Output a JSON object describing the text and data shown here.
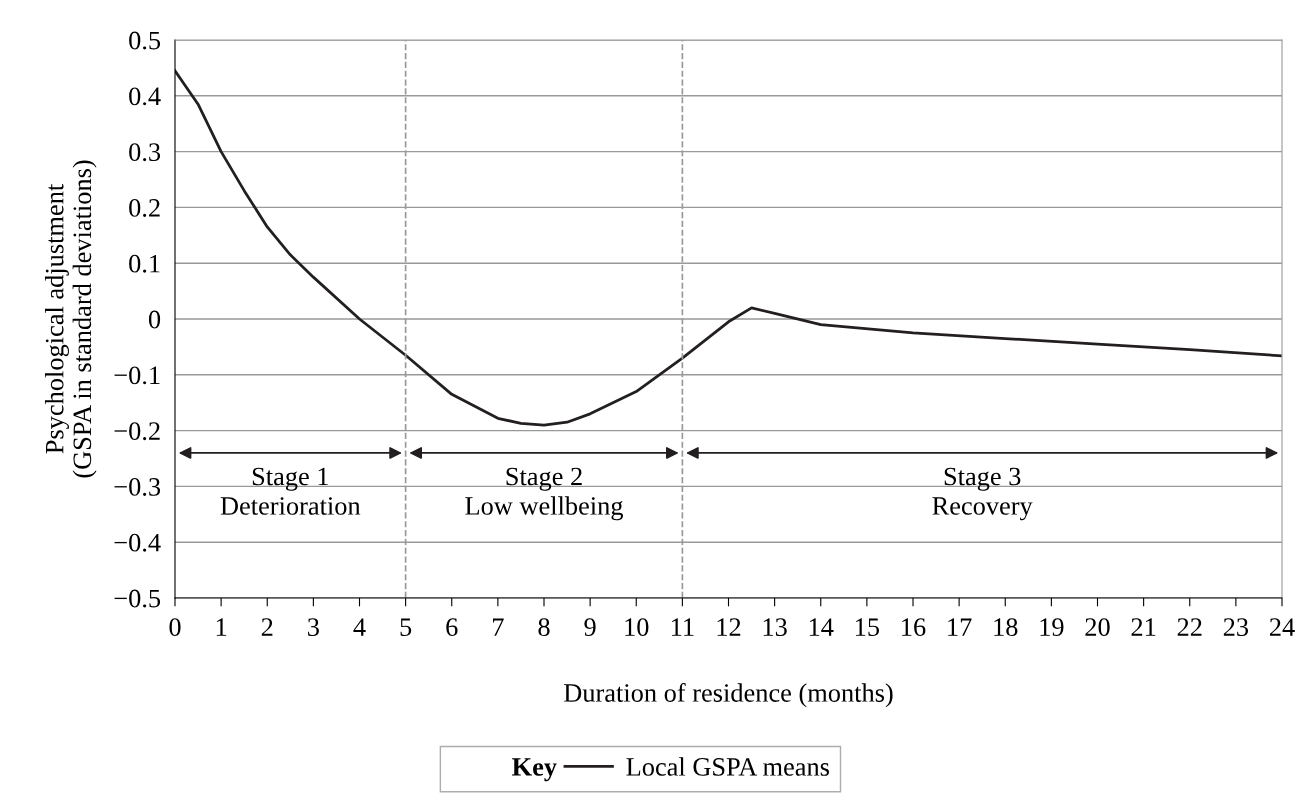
{
  "chart_data": {
    "type": "line",
    "xlabel": "Duration of residence (months)",
    "ylabel": "Psychological adjustment\n(GSPA in standard deviations)",
    "x": [
      0,
      0.5,
      1,
      1.5,
      2,
      2.5,
      3,
      4,
      5,
      6,
      7,
      7.5,
      8,
      8.5,
      9,
      10,
      11,
      12,
      12.5,
      13,
      14,
      16,
      18,
      20,
      22,
      24
    ],
    "series": [
      {
        "name": "Local GSPA means",
        "color": "#231f20",
        "values": [
          0.445,
          0.385,
          0.3,
          0.23,
          0.165,
          0.115,
          0.075,
          0.0,
          -0.065,
          -0.135,
          -0.178,
          -0.187,
          -0.19,
          -0.185,
          -0.17,
          -0.13,
          -0.07,
          -0.005,
          0.02,
          0.01,
          -0.01,
          -0.025,
          -0.035,
          -0.045,
          -0.055,
          -0.066
        ]
      }
    ],
    "xlim": [
      0,
      24
    ],
    "xticks": [
      0,
      1,
      2,
      3,
      4,
      5,
      6,
      7,
      8,
      9,
      10,
      11,
      12,
      13,
      14,
      15,
      16,
      17,
      18,
      19,
      20,
      21,
      22,
      23,
      24
    ],
    "ylim": [
      -0.5,
      0.5
    ],
    "yticks": [
      {
        "value": -0.5,
        "label": "−0.5"
      },
      {
        "value": -0.4,
        "label": "−0.4"
      },
      {
        "value": -0.3,
        "label": "−0.3"
      },
      {
        "value": -0.2,
        "label": "−0.2"
      },
      {
        "value": -0.1,
        "label": "−0.1"
      },
      0,
      0.1,
      0.2,
      0.3,
      0.4,
      0.5
    ],
    "grid": "y",
    "legend": "bottom",
    "legend_title": "Key",
    "marker": "none",
    "line_style": "solid",
    "ref_lines": [
      {
        "axis": "x",
        "value": 5,
        "label": null,
        "color": "#999999",
        "line_style": "dashed"
      },
      {
        "axis": "x",
        "value": 11,
        "label": null,
        "color": "#999999",
        "line_style": "dashed"
      }
    ],
    "annotations": [
      "Stage 1\nDeterioration",
      "Stage 2\nLow wellbeing",
      "Stage 3\nRecovery"
    ]
  }
}
